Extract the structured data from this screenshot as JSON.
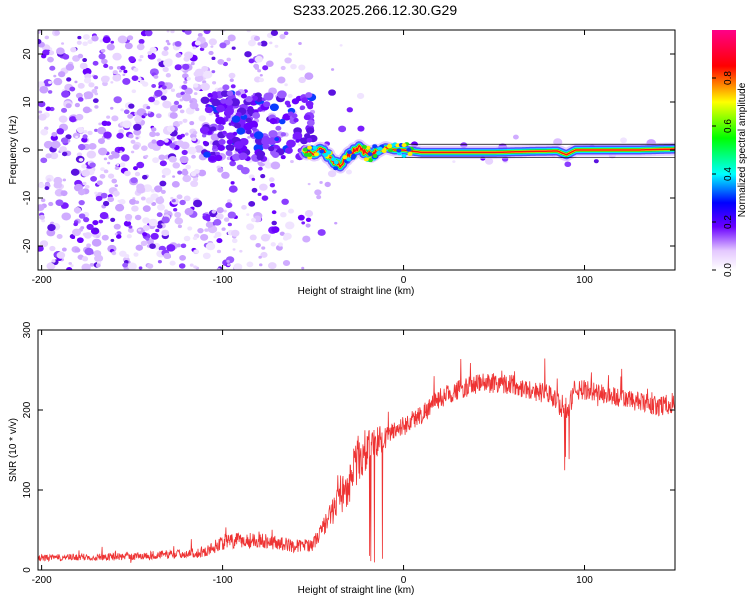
{
  "title": "S233.2025.266.12.30.G29",
  "chart_data": [
    {
      "type": "heatmap",
      "title": "S233.2025.266.12.30.G29",
      "xlabel": "Height of straight line (km)",
      "ylabel": "Frequency (Hz)",
      "xlim": [
        -202,
        150
      ],
      "ylim": [
        -25,
        25
      ],
      "xticks": [
        -200,
        -100,
        0,
        100
      ],
      "yticks": [
        -20,
        -10,
        0,
        10,
        20
      ],
      "xtick_labels": [
        "-200",
        "-100",
        "0",
        "100"
      ],
      "ytick_labels": [
        "-20",
        "-10",
        "0",
        "10",
        "20"
      ],
      "colorbar": {
        "label": "Normalized spectral amplitude",
        "range": [
          0,
          1
        ],
        "ticks": [
          0.0,
          0.2,
          0.4,
          0.6,
          0.8
        ],
        "tick_labels": [
          "0.0",
          "0.2",
          "0.4",
          "0.6",
          "0.8"
        ]
      },
      "ridge": [
        {
          "x": -55,
          "y": 0.0
        },
        {
          "x": -50,
          "y": -1.0
        },
        {
          "x": -45,
          "y": 0.5
        },
        {
          "x": -40,
          "y": -2.0
        },
        {
          "x": -35,
          "y": -3.0
        },
        {
          "x": -30,
          "y": -1.0
        },
        {
          "x": -25,
          "y": 0.5
        },
        {
          "x": -20,
          "y": -1.0
        },
        {
          "x": -15,
          "y": -0.5
        },
        {
          "x": -10,
          "y": 0.5
        },
        {
          "x": -5,
          "y": 0.0
        },
        {
          "x": 0,
          "y": 0.0
        },
        {
          "x": 10,
          "y": -0.5
        },
        {
          "x": 30,
          "y": -0.5
        },
        {
          "x": 50,
          "y": -0.5
        },
        {
          "x": 70,
          "y": -0.3
        },
        {
          "x": 85,
          "y": -0.2
        },
        {
          "x": 90,
          "y": -1.0
        },
        {
          "x": 95,
          "y": 0.0
        },
        {
          "x": 110,
          "y": 0.0
        },
        {
          "x": 130,
          "y": 0.0
        },
        {
          "x": 150,
          "y": 0.2
        }
      ]
    },
    {
      "type": "line",
      "xlabel": "Height of straight line (km)",
      "ylabel": "SNR (10 * v/v)",
      "xlim": [
        -202,
        150
      ],
      "ylim": [
        0,
        300
      ],
      "xticks": [
        -200,
        -100,
        0,
        100
      ],
      "yticks": [
        0,
        100,
        200,
        300
      ],
      "xtick_labels": [
        "-200",
        "-100",
        "0",
        "100"
      ],
      "ytick_labels": [
        "0",
        "100",
        "200",
        "300"
      ],
      "color": "#ee3333",
      "series": [
        {
          "name": "SNR",
          "x": [
            -202,
            -150,
            -110,
            -100,
            -80,
            -60,
            -50,
            -40,
            -35,
            -30,
            -25,
            -20,
            -15,
            -10,
            -5,
            0,
            10,
            20,
            30,
            40,
            50,
            60,
            70,
            80,
            90,
            95,
            100,
            110,
            120,
            130,
            140,
            150
          ],
          "y": [
            15,
            17,
            22,
            35,
            38,
            30,
            32,
            70,
            90,
            110,
            140,
            150,
            160,
            165,
            175,
            180,
            195,
            215,
            225,
            232,
            235,
            232,
            225,
            220,
            200,
            225,
            225,
            220,
            215,
            210,
            205,
            208
          ],
          "amp": [
            8,
            10,
            12,
            20,
            20,
            16,
            16,
            30,
            45,
            55,
            60,
            55,
            40,
            30,
            25,
            25,
            25,
            25,
            25,
            25,
            28,
            25,
            25,
            25,
            30,
            30,
            25,
            25,
            25,
            25,
            25,
            25
          ]
        }
      ]
    }
  ]
}
